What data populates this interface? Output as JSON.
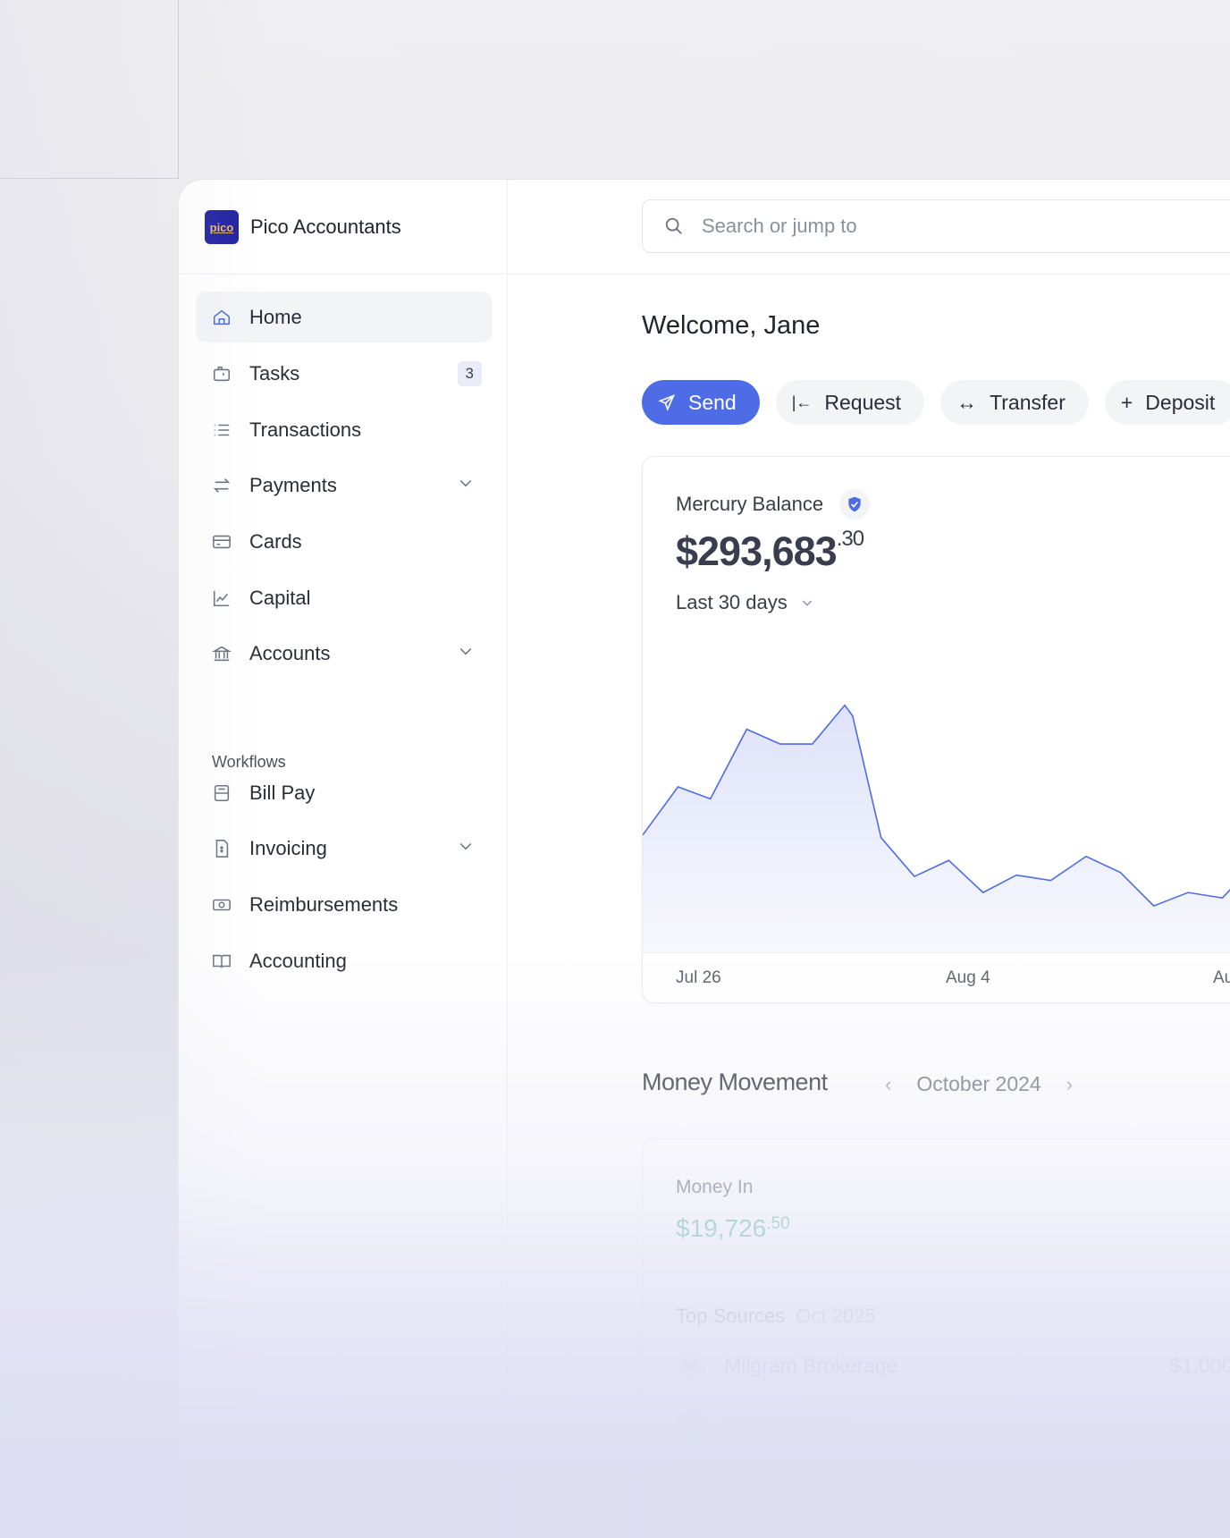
{
  "brand": {
    "name": "Pico Accountants",
    "logo_text": "pico",
    "logo_color": "#1d1fa0"
  },
  "search": {
    "placeholder": "Search or jump to"
  },
  "sidebar": {
    "items": [
      {
        "label": "Home",
        "icon": "home-icon",
        "active": true
      },
      {
        "label": "Tasks",
        "icon": "tasks-icon",
        "badge": "3"
      },
      {
        "label": "Transactions",
        "icon": "list-icon"
      },
      {
        "label": "Payments",
        "icon": "arrows-swap-icon",
        "expandable": true
      },
      {
        "label": "Cards",
        "icon": "card-icon"
      },
      {
        "label": "Capital",
        "icon": "chart-line-icon"
      },
      {
        "label": "Accounts",
        "icon": "bank-icon",
        "expandable": true
      }
    ],
    "section_title": "Workflows",
    "workflow_items": [
      {
        "label": "Bill Pay",
        "icon": "bill-icon"
      },
      {
        "label": "Invoicing",
        "icon": "invoice-icon",
        "expandable": true
      },
      {
        "label": "Reimbursements",
        "icon": "cash-icon"
      },
      {
        "label": "Accounting",
        "icon": "book-icon"
      }
    ]
  },
  "main": {
    "welcome": "Welcome, Jane",
    "actions": [
      {
        "label": "Send",
        "icon": "send-icon",
        "primary": true
      },
      {
        "label": "Request",
        "icon": "request-icon"
      },
      {
        "label": "Transfer",
        "icon": "transfer-icon"
      },
      {
        "label": "Deposit",
        "icon": "plus-icon"
      }
    ],
    "balance": {
      "label": "Mercury Balance",
      "whole": "$293,683",
      "cents": ".30",
      "range": "Last 30 days"
    },
    "money_movement": {
      "title": "Money Movement",
      "period": "October 2024",
      "money_in_label": "Money In",
      "money_in_whole": "$19,726",
      "money_in_cents": ".50",
      "top_sources_label": "Top Sources",
      "top_sources_period": "Oct 2025",
      "sources": [
        {
          "initials": "MB",
          "name": "Milgram Brokerage",
          "amount": "$1,000"
        }
      ]
    }
  },
  "colors": {
    "accent": "#4d6ce6",
    "positive": "#4fb596"
  },
  "chart_data": {
    "type": "area",
    "x_tick_labels": [
      "Jul 26",
      "Aug 4",
      "Au"
    ],
    "values": [
      81,
      117,
      108,
      160,
      149,
      149,
      178,
      170,
      79,
      50,
      62,
      38,
      51,
      47,
      65,
      53,
      28,
      38,
      34,
      61,
      45
    ],
    "grid": false,
    "color": "#4d6ce6"
  }
}
